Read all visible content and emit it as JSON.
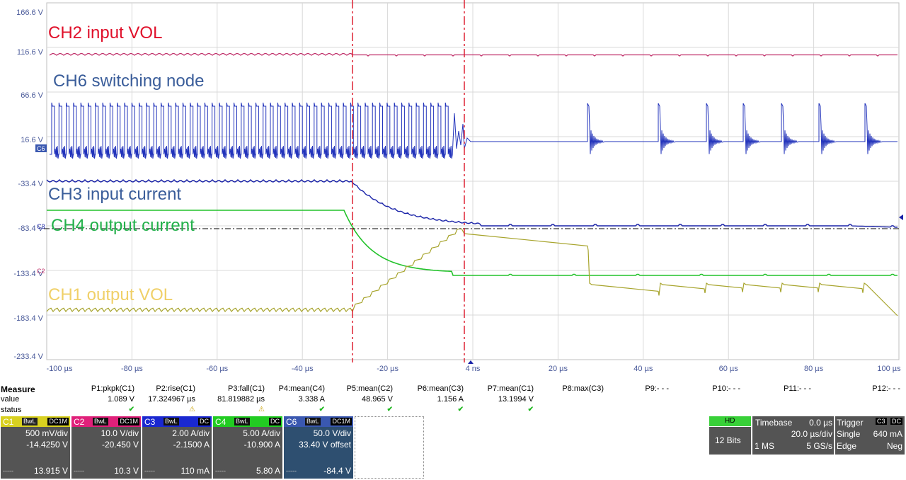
{
  "screen": {
    "y_axis_labels": [
      "166.6 V",
      "116.6 V",
      "66.6 V",
      "16.6 V",
      "-33.4 V",
      "-83.4 V",
      "-133.4 V",
      "-183.4 V",
      "-233.4 V"
    ],
    "x_axis_labels": [
      "-100 µs",
      "-80 µs",
      "-60 µs",
      "-40 µs",
      "-20 µs",
      "4 ns",
      "20 µs",
      "40 µs",
      "60 µs",
      "80 µs",
      "100 µs"
    ],
    "annotations": {
      "ch2": "CH2 input VOL",
      "ch6": "CH6 switching node",
      "ch3": "CH3 input current",
      "ch4": "CH4 output current",
      "ch1": "CH1 output VOL"
    },
    "markers": {
      "c6": "C6",
      "c2": "C2",
      "c3": "C3"
    },
    "colors": {
      "ch1": "#a7a42c",
      "ch2": "#c0306a",
      "ch3": "#1a23a8",
      "ch4": "#22c22a",
      "ch6": "#2233bb",
      "cursor": "#dd2233"
    }
  },
  "measure": {
    "title": "Measure",
    "row_labels": {
      "value": "value",
      "status": "status"
    },
    "params": [
      {
        "name": "P1:pkpk(C1)",
        "value": "1.089 V",
        "status": "ok"
      },
      {
        "name": "P2:rise(C1)",
        "value": "17.324967 µs",
        "status": "warn"
      },
      {
        "name": "P3:fall(C1)",
        "value": "81.819882 µs",
        "status": "warn"
      },
      {
        "name": "P4:mean(C4)",
        "value": "3.338 A",
        "status": "ok"
      },
      {
        "name": "P5:mean(C2)",
        "value": "48.965 V",
        "status": "ok"
      },
      {
        "name": "P6:mean(C3)",
        "value": "1.156 A",
        "status": "ok"
      },
      {
        "name": "P7:mean(C1)",
        "value": "13.1994 V",
        "status": "ok"
      },
      {
        "name": "P8:max(C3)",
        "value": "",
        "status": ""
      },
      {
        "name": "P9:- - -",
        "value": "",
        "status": ""
      },
      {
        "name": "P10:- - -",
        "value": "",
        "status": ""
      },
      {
        "name": "P11:- - -",
        "value": "",
        "status": ""
      },
      {
        "name": "P12:- - -",
        "value": "",
        "status": ""
      }
    ],
    "check_glyph": "✔",
    "warn_glyph": "⚠"
  },
  "channels": [
    {
      "name": "C1",
      "tag1": "BwL",
      "tag2": "DC1M",
      "scale": "500 mV/div",
      "offset": "-14.4250 V",
      "reading": "13.915 V",
      "color": "#d8d020",
      "dash": "-----"
    },
    {
      "name": "C2",
      "tag1": "BwL",
      "tag2": "DC1M",
      "scale": "10.0 V/div",
      "offset": "-20.450 V",
      "reading": "10.3 V",
      "color": "#e0207a",
      "dash": "-----"
    },
    {
      "name": "C3",
      "tag1": "BwL",
      "tag2": "DC",
      "scale": "2.00 A/div",
      "offset": "-2.1500 A",
      "reading": "110 mA",
      "color": "#1a28d0",
      "dash": "-----"
    },
    {
      "name": "C4",
      "tag1": "BwL",
      "tag2": "DC",
      "scale": "5.00 A/div",
      "offset": "-10.900 A",
      "reading": "5.80 A",
      "color": "#22cc22",
      "dash": "-----"
    },
    {
      "name": "C6",
      "tag1": "BwL",
      "tag2": "DC1M",
      "scale": "50.0 V/div",
      "offset": "33.40 V offset",
      "reading": "-84.4 V",
      "color": "#3a58b0",
      "dash": "-----"
    }
  ],
  "hd": {
    "label": "HD",
    "bits": "12 Bits"
  },
  "timebase": {
    "label": "Timebase",
    "delay": "0.0 µs",
    "per_div": "20.0 µs/div",
    "samples": "1 MS",
    "rate": "5 GS/s"
  },
  "trigger": {
    "label": "Trigger",
    "src": "C3",
    "coupling": "DC",
    "mode": "Single",
    "level": "640 mA",
    "type": "Edge",
    "slope": "Neg"
  }
}
